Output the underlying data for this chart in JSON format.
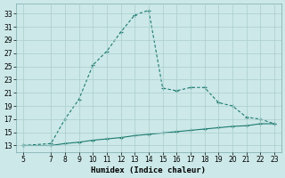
{
  "x_upper": [
    5,
    7,
    8,
    9,
    10,
    11,
    12,
    13,
    14,
    15,
    16,
    17,
    18,
    19,
    20,
    21,
    22,
    23
  ],
  "y_upper": [
    13,
    13.3,
    17,
    20,
    25.2,
    27.3,
    30.2,
    32.8,
    33.5,
    21.7,
    21.3,
    21.8,
    21.8,
    19.5,
    19,
    17.3,
    17,
    16.3
  ],
  "x_lower": [
    5,
    7,
    8,
    9,
    10,
    11,
    12,
    13,
    14,
    15,
    16,
    17,
    18,
    19,
    20,
    21,
    22,
    23
  ],
  "y_lower": [
    13,
    13,
    13.3,
    13.5,
    13.8,
    14.0,
    14.2,
    14.5,
    14.7,
    14.9,
    15.1,
    15.3,
    15.5,
    15.7,
    15.9,
    16.0,
    16.3,
    16.3
  ],
  "xlabel": "Humidex (Indice chaleur)",
  "line_color": "#1a7a6e",
  "bg_color": "#cce8e8",
  "grid_color": "#aacece",
  "xlim": [
    4.5,
    23.5
  ],
  "ylim": [
    12.0,
    34.5
  ],
  "xticks": [
    5,
    7,
    8,
    9,
    10,
    11,
    12,
    13,
    14,
    15,
    16,
    17,
    18,
    19,
    20,
    21,
    22,
    23
  ],
  "yticks": [
    13,
    15,
    17,
    19,
    21,
    23,
    25,
    27,
    29,
    31,
    33
  ]
}
